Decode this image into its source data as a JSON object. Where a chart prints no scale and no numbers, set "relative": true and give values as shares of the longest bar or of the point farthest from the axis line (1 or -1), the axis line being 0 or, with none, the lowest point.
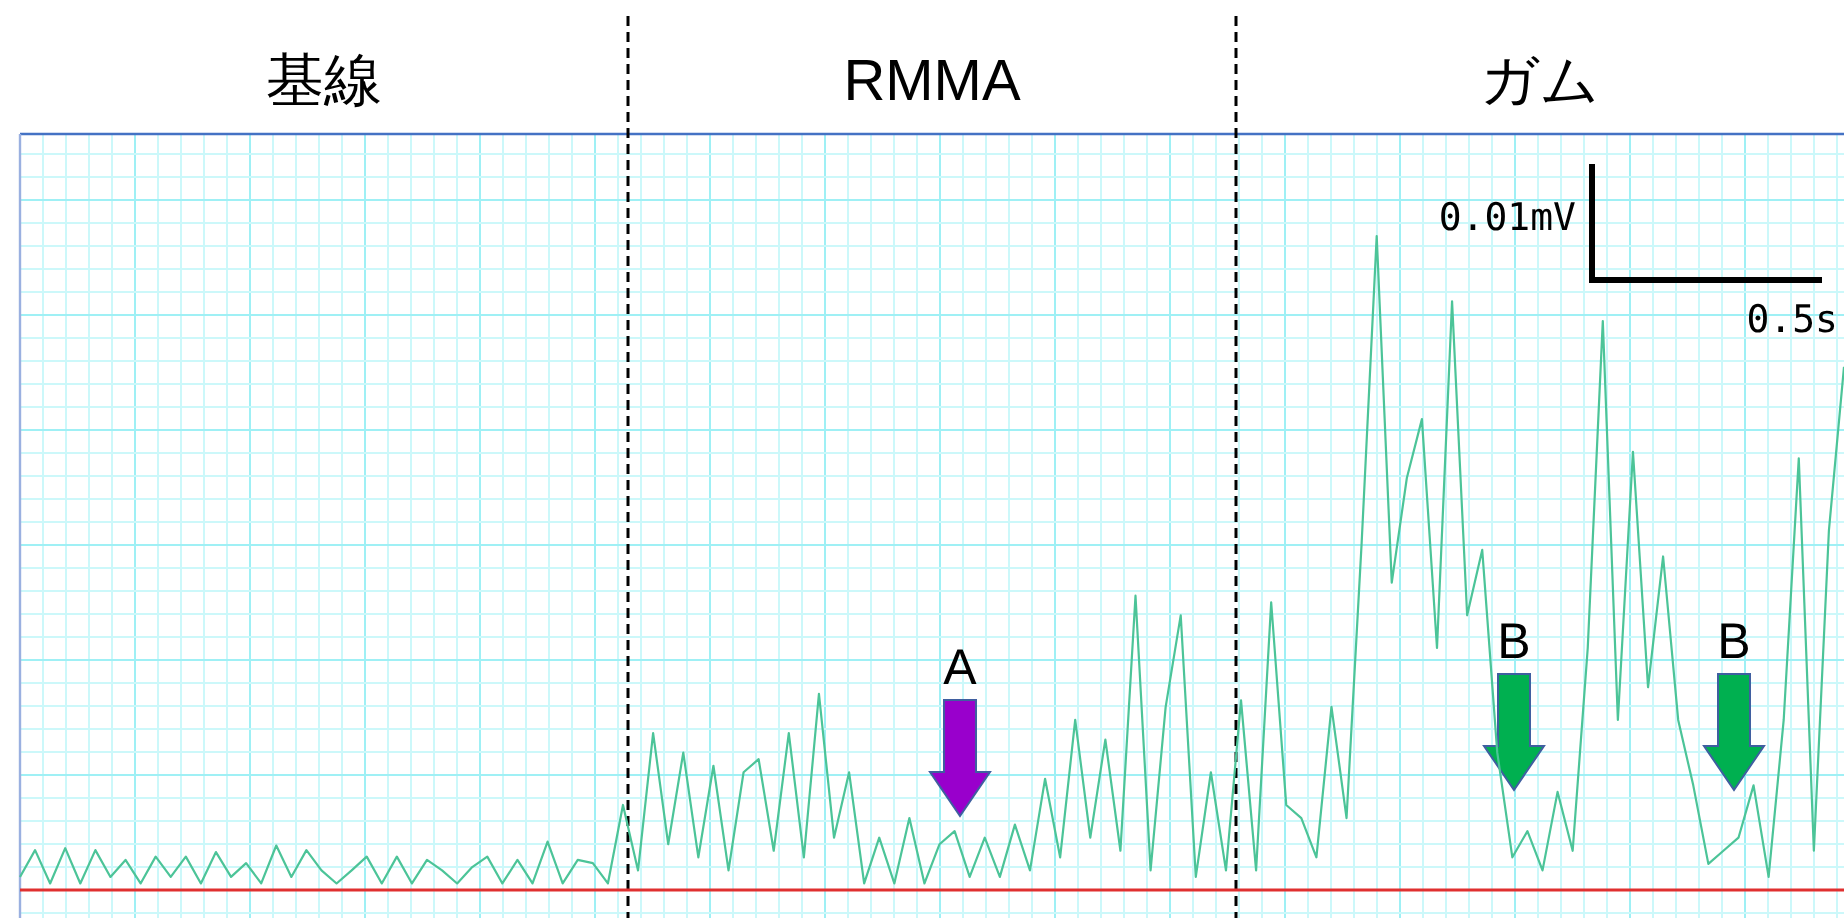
{
  "chart_data": {
    "type": "line",
    "relative": true,
    "grid": true,
    "categories": [
      null,
      null,
      null,
      null,
      null,
      null,
      null,
      null,
      null,
      null,
      null,
      null,
      null,
      null,
      null,
      null,
      null,
      null,
      null,
      null,
      null,
      null,
      null,
      null,
      null,
      null,
      null,
      null,
      null,
      null,
      null,
      null,
      null,
      null,
      null,
      null,
      null,
      null,
      null,
      null,
      null,
      null,
      null,
      null,
      null,
      null,
      null,
      null,
      null,
      null,
      null,
      null,
      null,
      null,
      null,
      null,
      null,
      null,
      null,
      null,
      null,
      null,
      null,
      null,
      null,
      null,
      null,
      null,
      null,
      null,
      null,
      null,
      null,
      null,
      null,
      null,
      null,
      null,
      null,
      null,
      null,
      null,
      null,
      null,
      null,
      null,
      null,
      null,
      null,
      null,
      null,
      null,
      null,
      null,
      null,
      null,
      null,
      null,
      null,
      null,
      null,
      null,
      null,
      null,
      null,
      null,
      null,
      null,
      null,
      null,
      null,
      null,
      null,
      null,
      null,
      null,
      null,
      null,
      null,
      null,
      null,
      null
    ],
    "series": [
      {
        "color": "#4cc498",
        "values": [
          0.02,
          0.061,
          0.01,
          0.064,
          0.01,
          0.061,
          0.02,
          0.046,
          0.01,
          0.051,
          0.02,
          0.051,
          0.01,
          0.058,
          0.02,
          0.041,
          0.01,
          0.068,
          0.02,
          0.061,
          0.03,
          0.01,
          0.03,
          0.051,
          0.01,
          0.051,
          0.01,
          0.046,
          0.03,
          0.01,
          0.035,
          0.051,
          0.01,
          0.046,
          0.01,
          0.074,
          0.01,
          0.046,
          0.041,
          0.01,
          0.13,
          0.03,
          0.24,
          0.07,
          0.21,
          0.05,
          0.19,
          0.03,
          0.18,
          0.2,
          0.06,
          0.24,
          0.05,
          0.3,
          0.08,
          0.18,
          0.01,
          0.08,
          0.01,
          0.11,
          0.01,
          0.07,
          0.09,
          0.02,
          0.08,
          0.02,
          0.1,
          0.03,
          0.17,
          0.05,
          0.26,
          0.08,
          0.23,
          0.06,
          0.45,
          0.03,
          0.28,
          0.42,
          0.02,
          0.18,
          0.03,
          0.29,
          0.03,
          0.44,
          0.13,
          0.11,
          0.05,
          0.28,
          0.11,
          0.53,
          1.0,
          0.47,
          0.63,
          0.72,
          0.37,
          0.9,
          0.42,
          0.52,
          0.21,
          0.05,
          0.09,
          0.03,
          0.15,
          0.06,
          0.37,
          0.87,
          0.26,
          0.67,
          0.31,
          0.51,
          0.26,
          0.16,
          0.04,
          0.06,
          0.08,
          0.16,
          0.02,
          0.26,
          0.66,
          0.06,
          0.55,
          0.8
        ]
      }
    ],
    "annotations": [
      "基線",
      "RMMA",
      "ガム",
      "A",
      "B",
      "B",
      "0.01mV",
      "0.5s"
    ]
  }
}
